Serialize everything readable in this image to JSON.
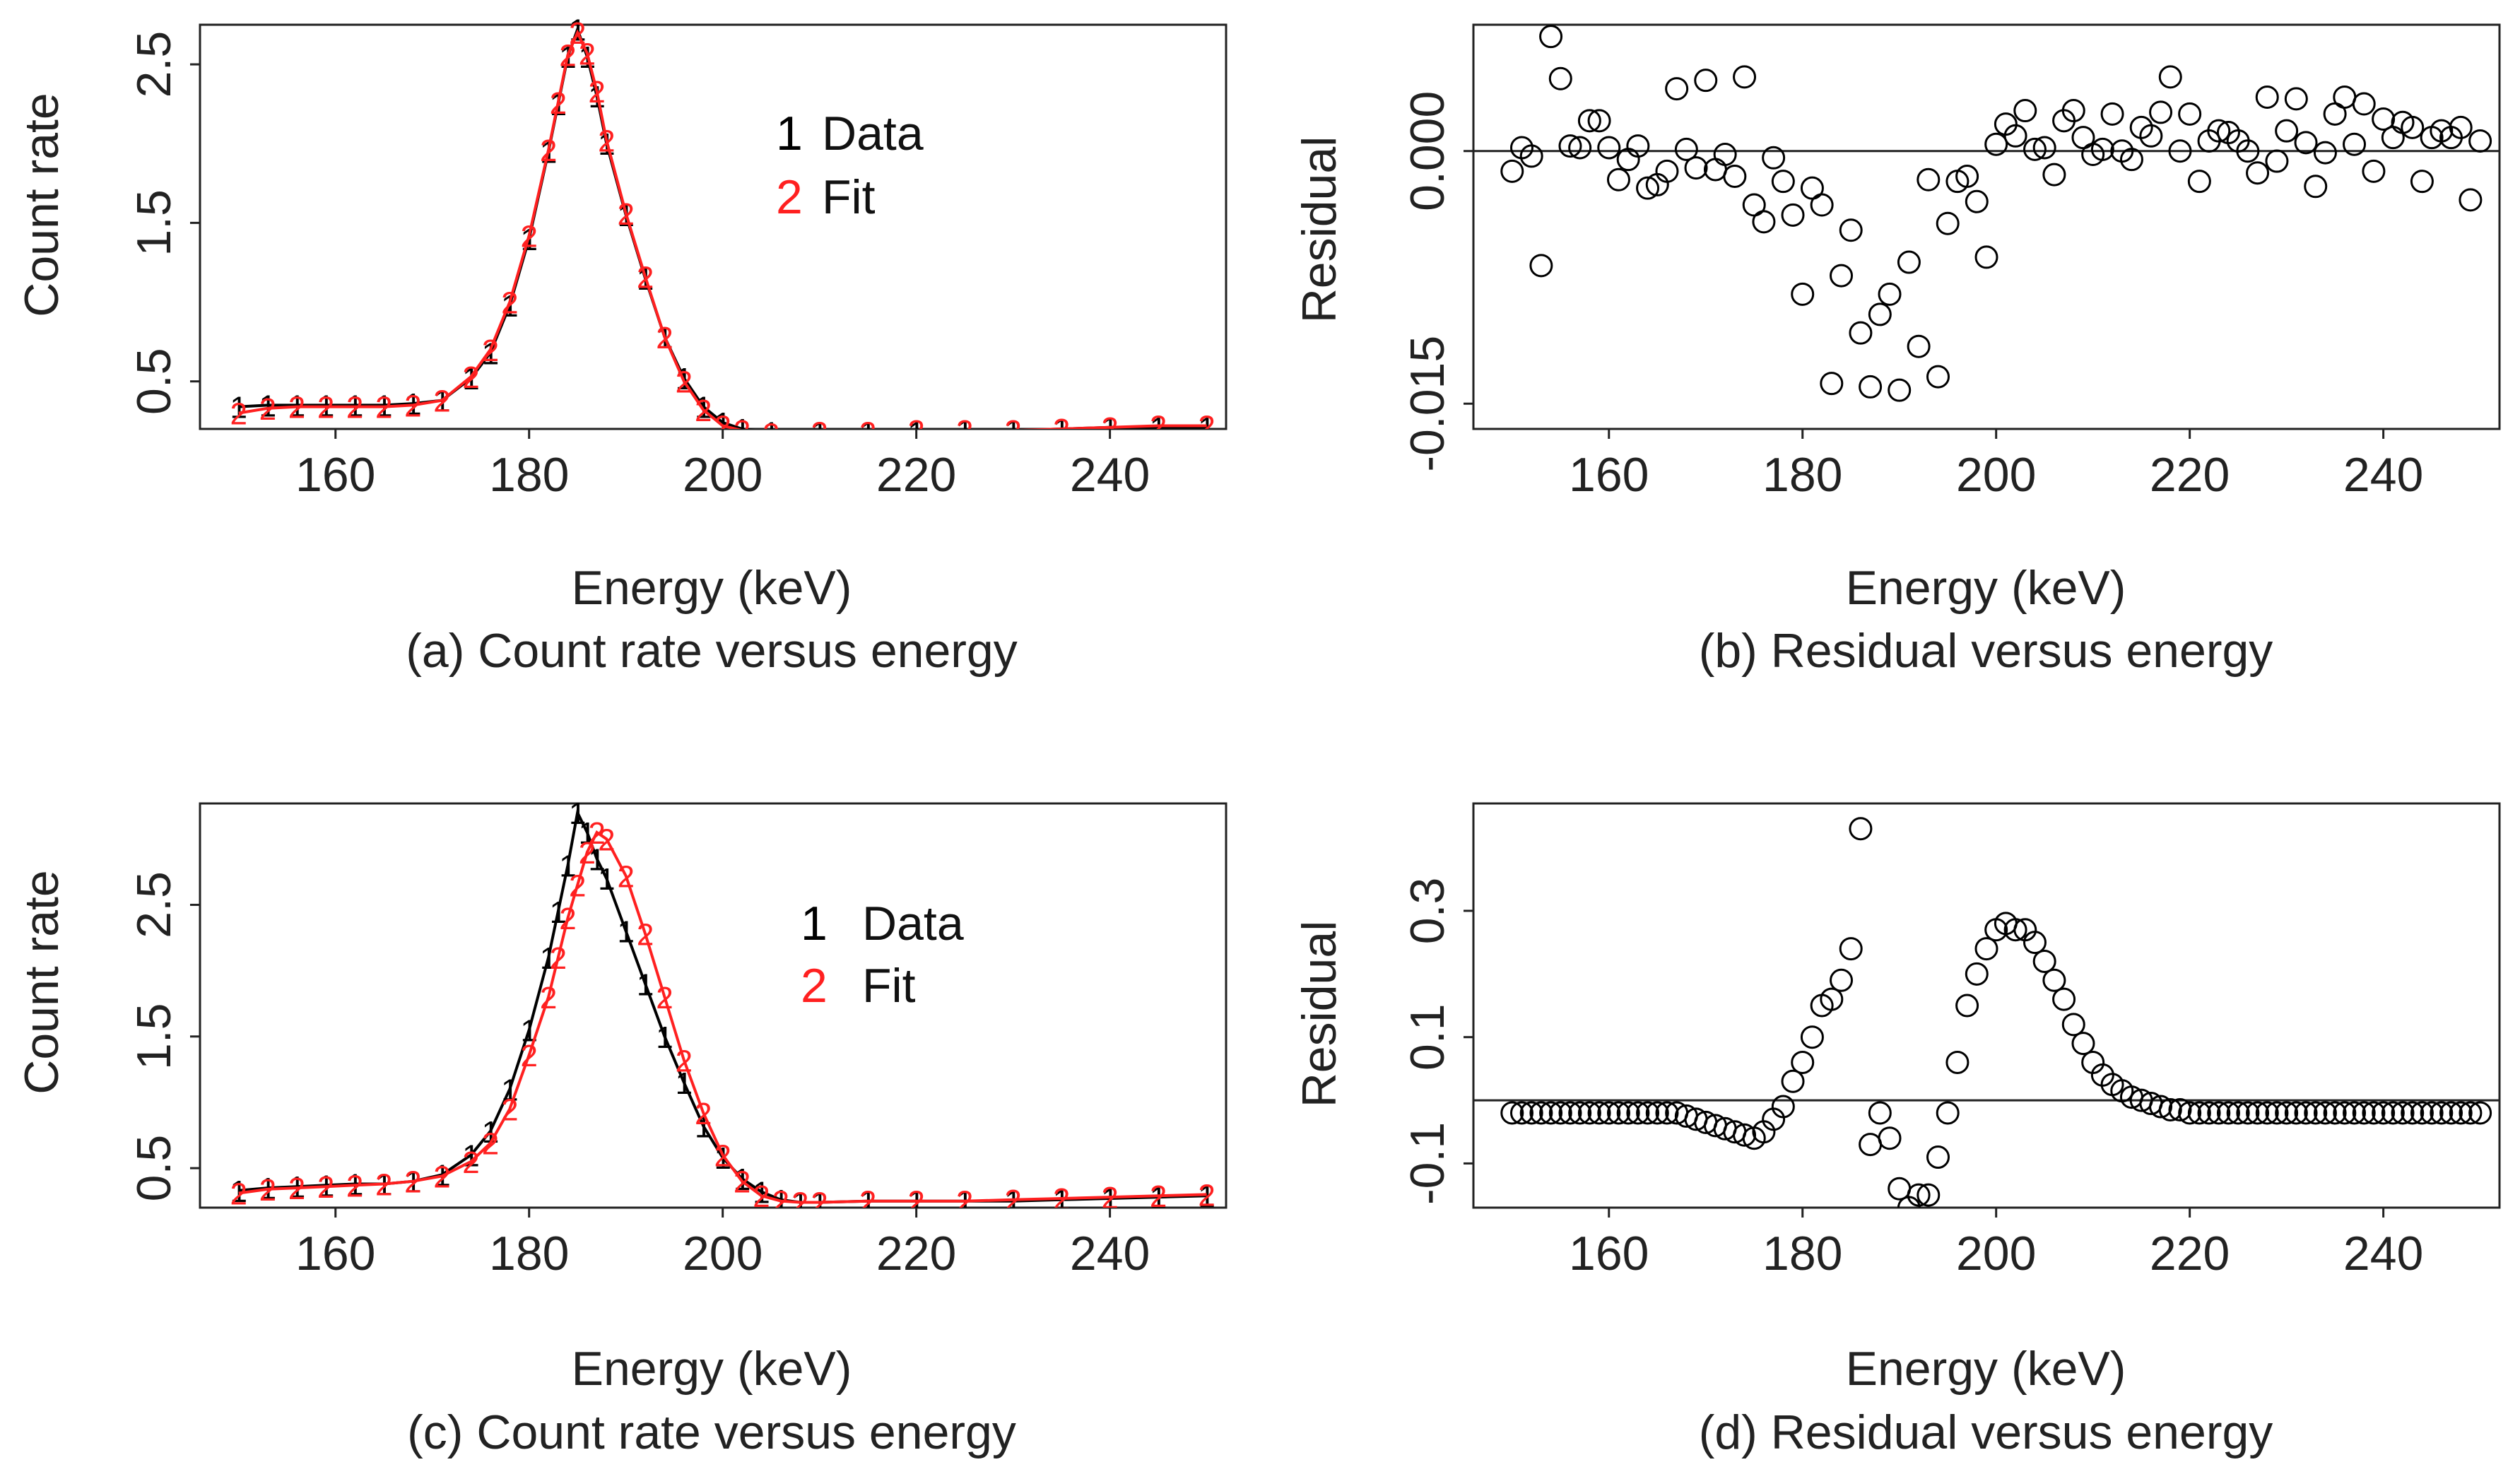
{
  "colors": {
    "data": "#000000",
    "fit": "#ff2020",
    "residual": "#000000",
    "axis": "#222222"
  },
  "chart_data": [
    {
      "id": "a",
      "type": "line",
      "caption": "(a) Count rate versus energy",
      "xlabel": "Energy (keV)",
      "ylabel": "Count rate",
      "xlim": [
        146,
        252
      ],
      "ylim": [
        0.2,
        2.75
      ],
      "xticks": [
        160,
        180,
        200,
        220,
        240
      ],
      "xtick_labels": [
        "160",
        "180",
        "200",
        "220",
        "240"
      ],
      "yticks": [
        0.5,
        1.5,
        2.5
      ],
      "ytick_labels": [
        "0.5",
        "1.5",
        "2.5"
      ],
      "legend": {
        "position": "top-right",
        "entries": [
          {
            "symbol": "1",
            "label": "Data"
          },
          {
            "symbol": "2",
            "label": "Fit"
          }
        ]
      },
      "series": [
        {
          "name": "Data",
          "symbol": "1",
          "color": "#000000",
          "x": [
            150,
            153,
            156,
            159,
            162,
            165,
            168,
            171,
            174,
            176,
            178,
            180,
            182,
            183,
            184,
            185,
            186,
            187,
            188,
            190,
            192,
            194,
            196,
            198,
            200,
            202,
            205,
            210,
            215,
            220,
            225,
            230,
            235,
            240,
            245,
            250
          ],
          "y": [
            0.34,
            0.35,
            0.35,
            0.35,
            0.35,
            0.35,
            0.36,
            0.38,
            0.52,
            0.68,
            0.98,
            1.4,
            1.95,
            2.25,
            2.55,
            2.72,
            2.55,
            2.3,
            2.0,
            1.55,
            1.15,
            0.78,
            0.52,
            0.34,
            0.24,
            0.2,
            0.18,
            0.18,
            0.18,
            0.18,
            0.19,
            0.19,
            0.2,
            0.21,
            0.21,
            0.21
          ]
        },
        {
          "name": "Fit",
          "symbol": "2",
          "color": "#ff2020",
          "x": [
            150,
            153,
            156,
            159,
            162,
            165,
            168,
            171,
            174,
            176,
            178,
            180,
            182,
            183,
            184,
            185,
            186,
            187,
            188,
            190,
            192,
            194,
            196,
            198,
            200,
            202,
            205,
            210,
            215,
            220,
            225,
            230,
            235,
            240,
            245,
            250
          ],
          "y": [
            0.3,
            0.33,
            0.34,
            0.34,
            0.34,
            0.34,
            0.35,
            0.38,
            0.53,
            0.7,
            1.0,
            1.42,
            1.96,
            2.26,
            2.56,
            2.7,
            2.57,
            2.33,
            2.02,
            1.56,
            1.16,
            0.78,
            0.5,
            0.32,
            0.22,
            0.19,
            0.17,
            0.18,
            0.18,
            0.19,
            0.19,
            0.19,
            0.2,
            0.21,
            0.22,
            0.22
          ]
        }
      ]
    },
    {
      "id": "b",
      "type": "scatter",
      "caption": "(b) Residual versus energy",
      "xlabel": "Energy (keV)",
      "ylabel": "Residual",
      "xlim": [
        146,
        252
      ],
      "ylim": [
        -0.0165,
        0.0075
      ],
      "xticks": [
        160,
        180,
        200,
        220,
        240
      ],
      "xtick_labels": [
        "160",
        "180",
        "200",
        "220",
        "240"
      ],
      "yticks": [
        0.0,
        -0.015
      ],
      "ytick_labels": [
        "0.000",
        "-0.015"
      ],
      "reference_line": 0,
      "points": {
        "x": [
          150,
          151,
          152,
          153,
          154,
          155,
          156,
          157,
          158,
          159,
          160,
          161,
          162,
          163,
          164,
          165,
          166,
          167,
          168,
          169,
          170,
          171,
          172,
          173,
          174,
          175,
          176,
          177,
          178,
          179,
          180,
          181,
          182,
          183,
          184,
          185,
          186,
          187,
          188,
          189,
          190,
          191,
          192,
          193,
          194,
          195,
          196,
          197,
          198,
          199,
          200,
          201,
          202,
          203,
          204,
          205,
          206,
          207,
          208,
          209,
          210,
          211,
          212,
          213,
          214,
          215,
          216,
          217,
          218,
          219,
          220,
          221,
          222,
          223,
          224,
          225,
          226,
          227,
          228,
          229,
          230,
          231,
          232,
          233,
          234,
          235,
          236,
          237,
          238,
          239,
          240,
          241,
          242,
          243,
          244,
          245,
          246,
          247,
          248,
          249,
          250
        ],
        "y": [
          -0.0012,
          0.0002,
          -0.0003,
          -0.0068,
          0.0068,
          0.0043,
          0.0003,
          0.0002,
          0.0018,
          0.0018,
          0.0002,
          -0.0017,
          -0.0005,
          0.0003,
          -0.0022,
          -0.002,
          -0.0012,
          0.0037,
          0.0001,
          -0.001,
          0.0042,
          -0.0011,
          -0.0002,
          -0.0015,
          0.0044,
          -0.0032,
          -0.0042,
          -0.0004,
          -0.0018,
          -0.0038,
          -0.0085,
          -0.0022,
          -0.0032,
          -0.0138,
          -0.0074,
          -0.0047,
          -0.0108,
          -0.014,
          -0.0097,
          -0.0085,
          -0.0142,
          -0.0066,
          -0.0116,
          -0.0017,
          -0.0134,
          -0.0043,
          -0.0018,
          -0.0015,
          -0.003,
          -0.0063,
          0.0004,
          0.0016,
          0.0009,
          0.0024,
          0.0001,
          0.0002,
          -0.0014,
          0.0018,
          0.0024,
          0.0008,
          -0.0002,
          0.0001,
          0.0022,
          0.0,
          -0.0005,
          0.0014,
          0.0009,
          0.0023,
          0.0044,
          0.0,
          0.0022,
          -0.0018,
          0.0006,
          0.0012,
          0.0011,
          0.0006,
          0.0,
          -0.0013,
          0.0032,
          -0.0006,
          0.0012,
          0.0031,
          0.0005,
          -0.0021,
          -0.0001,
          0.0022,
          0.0032,
          0.0004,
          0.0028,
          -0.0012,
          0.0019,
          0.0008,
          0.0017,
          0.0014,
          -0.0018,
          0.0008,
          0.0012,
          0.0008,
          0.0014,
          -0.0029,
          0.0006
        ]
      }
    },
    {
      "id": "c",
      "type": "line",
      "caption": "(c) Count rate versus energy",
      "xlabel": "Energy (keV)",
      "ylabel": "Count rate",
      "xlim": [
        146,
        252
      ],
      "ylim": [
        0.2,
        3.27
      ],
      "xticks": [
        160,
        180,
        200,
        220,
        240
      ],
      "xtick_labels": [
        "160",
        "180",
        "200",
        "220",
        "240"
      ],
      "yticks": [
        0.5,
        1.5,
        2.5
      ],
      "ytick_labels": [
        "0.5",
        "1.5",
        "2.5"
      ],
      "legend": {
        "position": "top-right",
        "entries": [
          {
            "symbol": "1",
            "label": "Data"
          },
          {
            "symbol": "2",
            "label": "Fit"
          }
        ]
      },
      "series": [
        {
          "name": "Data",
          "symbol": "1",
          "color": "#000000",
          "x": [
            150,
            153,
            156,
            159,
            162,
            165,
            168,
            171,
            174,
            176,
            178,
            180,
            182,
            183,
            184,
            185,
            186,
            187,
            188,
            190,
            192,
            194,
            196,
            198,
            200,
            202,
            204,
            206,
            208,
            210,
            215,
            220,
            225,
            230,
            235,
            240,
            245,
            250
          ],
          "y": [
            0.33,
            0.35,
            0.36,
            0.37,
            0.38,
            0.38,
            0.4,
            0.45,
            0.6,
            0.78,
            1.1,
            1.55,
            2.1,
            2.45,
            2.8,
            3.2,
            3.05,
            2.85,
            2.7,
            2.3,
            1.9,
            1.5,
            1.15,
            0.82,
            0.58,
            0.42,
            0.32,
            0.26,
            0.24,
            0.24,
            0.25,
            0.25,
            0.25,
            0.25,
            0.26,
            0.27,
            0.28,
            0.29
          ]
        },
        {
          "name": "Fit",
          "symbol": "2",
          "color": "#ff2020",
          "x": [
            150,
            153,
            156,
            159,
            162,
            165,
            168,
            171,
            174,
            176,
            178,
            180,
            182,
            183,
            184,
            185,
            186,
            187,
            188,
            190,
            192,
            194,
            196,
            198,
            200,
            202,
            204,
            206,
            208,
            210,
            215,
            220,
            225,
            230,
            235,
            240,
            245,
            250
          ],
          "y": [
            0.31,
            0.34,
            0.35,
            0.36,
            0.37,
            0.38,
            0.4,
            0.44,
            0.55,
            0.69,
            0.95,
            1.36,
            1.8,
            2.1,
            2.4,
            2.65,
            2.9,
            3.05,
            3.0,
            2.72,
            2.28,
            1.8,
            1.32,
            0.92,
            0.6,
            0.4,
            0.29,
            0.25,
            0.24,
            0.24,
            0.25,
            0.25,
            0.25,
            0.26,
            0.27,
            0.28,
            0.29,
            0.3
          ]
        }
      ]
    },
    {
      "id": "d",
      "type": "scatter",
      "caption": "(d) Residual versus energy",
      "xlabel": "Energy (keV)",
      "ylabel": "Residual",
      "xlim": [
        146,
        252
      ],
      "ylim": [
        -0.17,
        0.47
      ],
      "xticks": [
        160,
        180,
        200,
        220,
        240
      ],
      "xtick_labels": [
        "160",
        "180",
        "200",
        "220",
        "240"
      ],
      "yticks": [
        -0.1,
        0.1,
        0.3
      ],
      "ytick_labels": [
        "-0.1",
        "0.1",
        "0.3"
      ],
      "reference_line": 0,
      "points": {
        "x": [
          150,
          151,
          152,
          153,
          154,
          155,
          156,
          157,
          158,
          159,
          160,
          161,
          162,
          163,
          164,
          165,
          166,
          167,
          168,
          169,
          170,
          171,
          172,
          173,
          174,
          175,
          176,
          177,
          178,
          179,
          180,
          181,
          182,
          183,
          184,
          185,
          186,
          187,
          188,
          189,
          190,
          191,
          192,
          193,
          194,
          195,
          196,
          197,
          198,
          199,
          200,
          201,
          202,
          203,
          204,
          205,
          206,
          207,
          208,
          209,
          210,
          211,
          212,
          213,
          214,
          215,
          216,
          217,
          218,
          219,
          220,
          221,
          222,
          223,
          224,
          225,
          226,
          227,
          228,
          229,
          230,
          231,
          232,
          233,
          234,
          235,
          236,
          237,
          238,
          239,
          240,
          241,
          242,
          243,
          244,
          245,
          246,
          247,
          248,
          249,
          250
        ],
        "y": [
          -0.02,
          -0.02,
          -0.02,
          -0.02,
          -0.02,
          -0.02,
          -0.02,
          -0.02,
          -0.02,
          -0.02,
          -0.02,
          -0.02,
          -0.02,
          -0.02,
          -0.02,
          -0.02,
          -0.02,
          -0.02,
          -0.025,
          -0.03,
          -0.035,
          -0.04,
          -0.045,
          -0.05,
          -0.055,
          -0.06,
          -0.05,
          -0.03,
          -0.01,
          0.03,
          0.06,
          0.1,
          0.15,
          0.16,
          0.19,
          0.24,
          0.43,
          -0.07,
          -0.02,
          -0.06,
          -0.14,
          -0.17,
          -0.15,
          -0.15,
          -0.09,
          -0.02,
          0.06,
          0.15,
          0.2,
          0.24,
          0.27,
          0.28,
          0.27,
          0.27,
          0.25,
          0.22,
          0.19,
          0.16,
          0.12,
          0.09,
          0.06,
          0.04,
          0.025,
          0.015,
          0.005,
          0.0,
          -0.005,
          -0.01,
          -0.015,
          -0.015,
          -0.02,
          -0.02,
          -0.02,
          -0.02,
          -0.02,
          -0.02,
          -0.02,
          -0.02,
          -0.02,
          -0.02,
          -0.02,
          -0.02,
          -0.02,
          -0.02,
          -0.02,
          -0.02,
          -0.02,
          -0.02,
          -0.02,
          -0.02,
          -0.02,
          -0.02,
          -0.02,
          -0.02,
          -0.02,
          -0.02,
          -0.02,
          -0.02,
          -0.02,
          -0.02,
          -0.02
        ]
      }
    }
  ]
}
